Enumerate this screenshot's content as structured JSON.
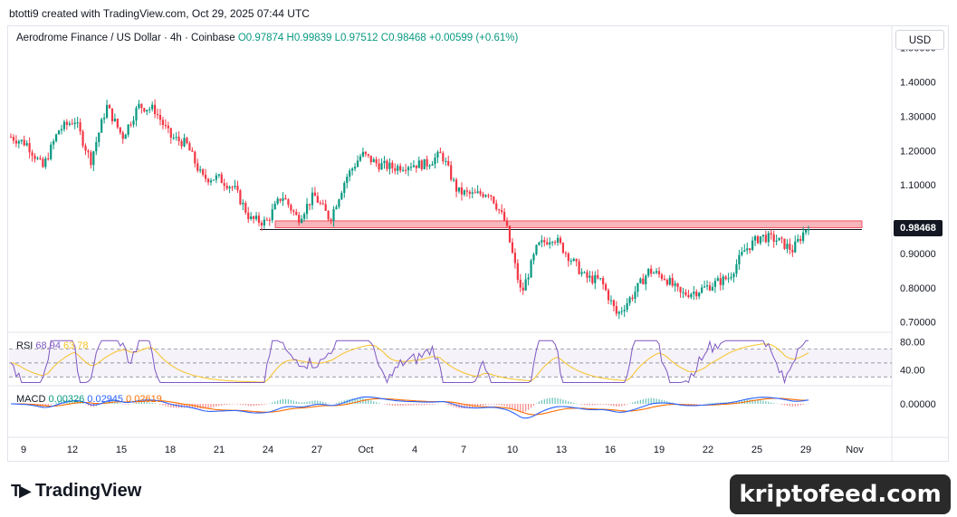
{
  "header": {
    "attribution": "btotti9 created with TradingView.com, Oct 29, 2025 07:44 UTC"
  },
  "legend": {
    "symbol": "Aerodrome Finance / US Dollar · 4h · Coinbase",
    "open": "O0.97874",
    "high": "H0.99839",
    "low": "L0.97512",
    "close": "C0.98468",
    "change": "+0.00599 (+0.61%)"
  },
  "currency_button": "USD",
  "current_price_label": "0.98468",
  "rsi": {
    "label": "RSI",
    "value": "68.94",
    "ma_value": "63.78"
  },
  "macd": {
    "label": "MACD",
    "hist": "0.00326",
    "macd": "0.02945",
    "signal": "0.02619"
  },
  "branding": {
    "logo_text": "TradingView",
    "watermark": "kriptofeed.com"
  },
  "colors": {
    "up": "#089981",
    "down": "#f23645",
    "rsi": "#7e57c2",
    "rsi_ma": "#f7c325",
    "macd": "#2962ff",
    "signal": "#ff6d00",
    "zone": "#f7b6bc"
  },
  "chart_data": {
    "type": "candlestick",
    "title": "Aerodrome Finance / US Dollar · 4h · Coinbase",
    "x_tick_labels": [
      "9",
      "12",
      "15",
      "18",
      "21",
      "24",
      "27",
      "Oct",
      "4",
      "7",
      "10",
      "13",
      "16",
      "19",
      "22",
      "25",
      "29",
      "Nov"
    ],
    "y_tick_labels": [
      "1.50000",
      "1.40000",
      "1.30000",
      "1.20000",
      "1.10000",
      "0.90000",
      "0.80000",
      "0.70000"
    ],
    "ylim": [
      0.67,
      1.56
    ],
    "close_path": [
      {
        "x": "9 Sep",
        "y": 1.24
      },
      {
        "x": "10 Sep",
        "y": 1.22
      },
      {
        "x": "11 Sep",
        "y": 1.15
      },
      {
        "x": "12 Sep",
        "y": 1.26
      },
      {
        "x": "13 Sep",
        "y": 1.29
      },
      {
        "x": "14 Sep",
        "y": 1.17
      },
      {
        "x": "15 Sep",
        "y": 1.33
      },
      {
        "x": "16 Sep",
        "y": 1.24
      },
      {
        "x": "17 Sep",
        "y": 1.33
      },
      {
        "x": "18 Sep",
        "y": 1.32
      },
      {
        "x": "19 Sep",
        "y": 1.24
      },
      {
        "x": "20 Sep",
        "y": 1.22
      },
      {
        "x": "21 Sep",
        "y": 1.12
      },
      {
        "x": "22 Sep",
        "y": 1.12
      },
      {
        "x": "23 Sep",
        "y": 1.09
      },
      {
        "x": "24 Sep",
        "y": 1.0
      },
      {
        "x": "25 Sep",
        "y": 0.99
      },
      {
        "x": "26 Sep",
        "y": 1.07
      },
      {
        "x": "27 Sep",
        "y": 1.0
      },
      {
        "x": "28 Sep",
        "y": 1.07
      },
      {
        "x": "29 Sep",
        "y": 1.0
      },
      {
        "x": "30 Sep",
        "y": 1.12
      },
      {
        "x": "1 Oct",
        "y": 1.19
      },
      {
        "x": "2 Oct",
        "y": 1.16
      },
      {
        "x": "3 Oct",
        "y": 1.15
      },
      {
        "x": "4 Oct",
        "y": 1.16
      },
      {
        "x": "5 Oct",
        "y": 1.16
      },
      {
        "x": "6 Oct",
        "y": 1.19
      },
      {
        "x": "7 Oct",
        "y": 1.08
      },
      {
        "x": "8 Oct",
        "y": 1.07
      },
      {
        "x": "9 Oct",
        "y": 1.08
      },
      {
        "x": "10 Oct",
        "y": 0.99
      },
      {
        "x": "11 Oct",
        "y": 0.78
      },
      {
        "x": "12 Oct",
        "y": 0.92
      },
      {
        "x": "13 Oct",
        "y": 0.95
      },
      {
        "x": "14 Oct",
        "y": 0.89
      },
      {
        "x": "15 Oct",
        "y": 0.83
      },
      {
        "x": "16 Oct",
        "y": 0.82
      },
      {
        "x": "17 Oct",
        "y": 0.72
      },
      {
        "x": "18 Oct",
        "y": 0.78
      },
      {
        "x": "19 Oct",
        "y": 0.85
      },
      {
        "x": "20 Oct",
        "y": 0.83
      },
      {
        "x": "21 Oct",
        "y": 0.78
      },
      {
        "x": "22 Oct",
        "y": 0.79
      },
      {
        "x": "23 Oct",
        "y": 0.81
      },
      {
        "x": "24 Oct",
        "y": 0.83
      },
      {
        "x": "25 Oct",
        "y": 0.91
      },
      {
        "x": "26 Oct",
        "y": 0.95
      },
      {
        "x": "27 Oct",
        "y": 0.94
      },
      {
        "x": "28 Oct",
        "y": 0.91
      },
      {
        "x": "29 Oct",
        "y": 0.98468
      }
    ],
    "resistance_zone": {
      "from": 0.975,
      "to": 0.995
    }
  }
}
